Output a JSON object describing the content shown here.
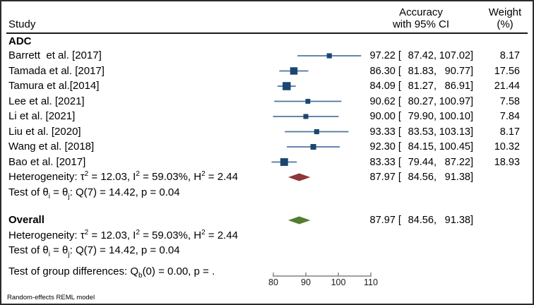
{
  "header": {
    "study": "Study",
    "accuracy_line1": "Accuracy",
    "accuracy_line2": "with 95% CI",
    "weight_line1": "Weight",
    "weight_line2": "(%)"
  },
  "group_label": "ADC",
  "overall_label": "Overall",
  "footer": "Random-effects REML model",
  "colors": {
    "marker": "#1a476f",
    "ci_line": "#4f74a0",
    "subgroup_diamond": "#90353b",
    "overall_diamond": "#527d2e",
    "axis": "#808080",
    "axis_label": "#1a1a1a"
  },
  "chart_data": {
    "type": "forest",
    "title": "",
    "xlabel": "",
    "x_axis": {
      "ticks": [
        80,
        90,
        100,
        110
      ],
      "min": 80,
      "max": 110
    },
    "studies": [
      {
        "label": "Barrett  et al. [2017]",
        "est": 97.22,
        "lo": 87.42,
        "hi": 107.02,
        "est_text": "97.22",
        "lo_text": "87.42",
        "hi_text": "107.02",
        "weight": "8.17"
      },
      {
        "label": "Tamada et al. [2017]",
        "est": 86.3,
        "lo": 81.83,
        "hi": 90.77,
        "est_text": "86.30",
        "lo_text": "81.83",
        "hi_text": "90.77",
        "weight": "17.56"
      },
      {
        "label": "Tamura et al.[2014]",
        "est": 84.09,
        "lo": 81.27,
        "hi": 86.91,
        "est_text": "84.09",
        "lo_text": "81.27",
        "hi_text": "86.91",
        "weight": "21.44"
      },
      {
        "label": "Lee et al. [2021]",
        "est": 90.62,
        "lo": 80.27,
        "hi": 100.97,
        "est_text": "90.62",
        "lo_text": "80.27",
        "hi_text": "100.97",
        "weight": "7.58"
      },
      {
        "label": "Li et al. [2021]",
        "est": 90.0,
        "lo": 79.9,
        "hi": 100.1,
        "est_text": "90.00",
        "lo_text": "79.90",
        "hi_text": "100.10",
        "weight": "7.84"
      },
      {
        "label": "Liu et al. [2020]",
        "est": 93.33,
        "lo": 83.53,
        "hi": 103.13,
        "est_text": "93.33",
        "lo_text": "83.53",
        "hi_text": "103.13",
        "weight": "8.17"
      },
      {
        "label": "Wang et al. [2018]",
        "est": 92.3,
        "lo": 84.15,
        "hi": 100.45,
        "est_text": "92.30",
        "lo_text": "84.15",
        "hi_text": "100.45",
        "weight": "10.32"
      },
      {
        "label": "Bao et al. [2017]",
        "est": 83.33,
        "lo": 79.44,
        "hi": 87.22,
        "est_text": "83.33",
        "lo_text": "79.44",
        "hi_text": "87.22",
        "weight": "18.93"
      }
    ],
    "adc_summary": {
      "est": 87.97,
      "lo": 84.56,
      "hi": 91.38,
      "est_text": "87.97",
      "lo_text": "84.56",
      "hi_text": "91.38"
    },
    "overall_summary": {
      "est": 87.97,
      "lo": 84.56,
      "hi": 91.38,
      "est_text": "87.97",
      "lo_text": "84.56",
      "hi_text": "91.38"
    },
    "stats": {
      "adc_heterogeneity": [
        {
          "t": "Heterogeneity: τ"
        },
        {
          "sup": "2"
        },
        {
          "t": " = 12.03, I"
        },
        {
          "sup": "2"
        },
        {
          "t": " = 59.03%, H"
        },
        {
          "sup": "2"
        },
        {
          "t": " = 2.44"
        }
      ],
      "adc_test": [
        {
          "t": "Test of θ"
        },
        {
          "sub": "i"
        },
        {
          "t": " = θ"
        },
        {
          "sub": "j"
        },
        {
          "t": ": Q(7) = 14.42, p = 0.04"
        }
      ],
      "overall_heterogeneity": [
        {
          "t": "Heterogeneity: τ"
        },
        {
          "sup": "2"
        },
        {
          "t": " = 12.03, I"
        },
        {
          "sup": "2"
        },
        {
          "t": " = 59.03%, H"
        },
        {
          "sup": "2"
        },
        {
          "t": " = 2.44"
        }
      ],
      "overall_test": [
        {
          "t": "Test of θ"
        },
        {
          "sub": "i"
        },
        {
          "t": " = θ"
        },
        {
          "sub": "j"
        },
        {
          "t": ": Q(7) = 14.42, p = 0.04"
        }
      ],
      "group_diff": [
        {
          "t": "Test of group differences: Q"
        },
        {
          "sub": "b"
        },
        {
          "t": "(0) = 0.00, p = ."
        }
      ]
    }
  }
}
